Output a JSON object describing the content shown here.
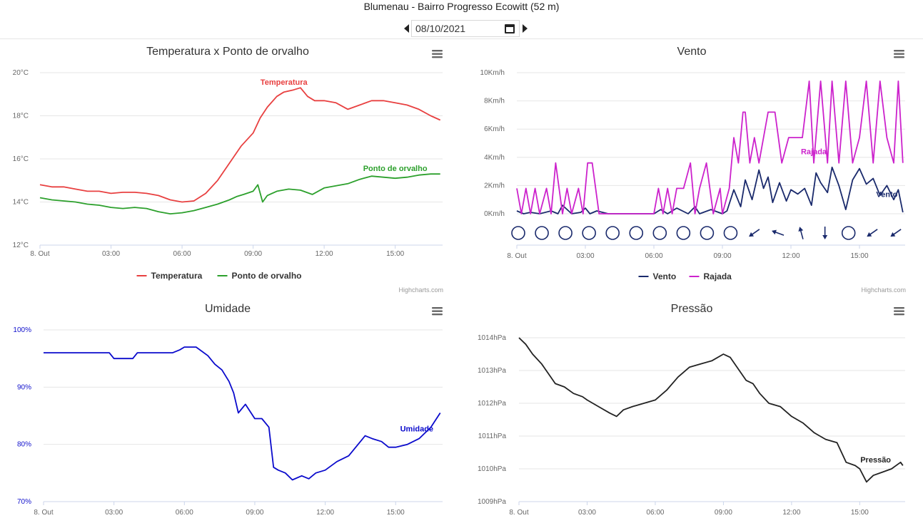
{
  "page": {
    "title": "Blumenau - Bairro Progresso Ecowitt (52 m)"
  },
  "date_nav": {
    "date": "08/10/2021"
  },
  "chart_data": [
    {
      "id": "temp",
      "type": "line",
      "title": "Temperatura x Ponto de orvalho",
      "x_ticks": [
        "8. Out",
        "03:00",
        "06:00",
        "09:00",
        "12:00",
        "15:00"
      ],
      "x_range": [
        0,
        17
      ],
      "y_ticks": [
        "12°C",
        "14°C",
        "16°C",
        "18°C",
        "20°C"
      ],
      "ylim": [
        12,
        20
      ],
      "tick_color": "#666666",
      "series": [
        {
          "name": "Temperatura",
          "label": "Temperatura",
          "color": "#e84040",
          "x": [
            0,
            0.25,
            0.5,
            1,
            1.5,
            2,
            2.5,
            3,
            3.5,
            4,
            4.5,
            5,
            5.5,
            6,
            6.5,
            7,
            7.5,
            8,
            8.5,
            9,
            9.3,
            9.6,
            10,
            10.3,
            10.7,
            11,
            11.3,
            11.6,
            12,
            12.5,
            13,
            13.5,
            14,
            14.5,
            15,
            15.5,
            16,
            16.5,
            16.9
          ],
          "y": [
            14.8,
            14.75,
            14.7,
            14.7,
            14.6,
            14.5,
            14.5,
            14.4,
            14.45,
            14.45,
            14.4,
            14.3,
            14.1,
            14.0,
            14.05,
            14.4,
            15.0,
            15.8,
            16.6,
            17.2,
            17.9,
            18.4,
            18.9,
            19.1,
            19.2,
            19.3,
            18.9,
            18.7,
            18.7,
            18.6,
            18.3,
            18.5,
            18.7,
            18.7,
            18.6,
            18.5,
            18.3,
            18.0,
            17.8
          ]
        },
        {
          "name": "Ponto de orvalho",
          "label": "Ponto de orvalho",
          "color": "#2ca02c",
          "x": [
            0,
            0.5,
            1,
            1.5,
            2,
            2.5,
            3,
            3.5,
            4,
            4.5,
            5,
            5.5,
            6,
            6.5,
            7,
            7.5,
            8,
            8.3,
            8.6,
            9,
            9.2,
            9.4,
            9.6,
            10,
            10.5,
            11,
            11.5,
            12,
            12.5,
            13,
            13.5,
            14,
            14.5,
            15,
            15.5,
            16,
            16.5,
            16.9
          ],
          "y": [
            14.2,
            14.1,
            14.05,
            14.0,
            13.9,
            13.85,
            13.75,
            13.7,
            13.75,
            13.7,
            13.55,
            13.45,
            13.5,
            13.6,
            13.75,
            13.9,
            14.1,
            14.25,
            14.35,
            14.5,
            14.8,
            14.0,
            14.3,
            14.5,
            14.6,
            14.55,
            14.35,
            14.65,
            14.75,
            14.85,
            15.05,
            15.2,
            15.15,
            15.1,
            15.15,
            15.25,
            15.3,
            15.3
          ]
        }
      ],
      "legend": [
        "Temperatura",
        "Ponto de orvalho"
      ],
      "credit": "Highcharts.com"
    },
    {
      "id": "wind",
      "type": "line",
      "title": "Vento",
      "x_ticks": [
        "8. Out",
        "03:00",
        "06:00",
        "09:00",
        "12:00",
        "15:00"
      ],
      "x_range": [
        0,
        17
      ],
      "y_ticks": [
        "0Km/h",
        "2Km/h",
        "4Km/h",
        "6Km/h",
        "8Km/h",
        "10Km/h"
      ],
      "ylim": [
        0,
        10
      ],
      "tick_color": "#666666",
      "series": [
        {
          "name": "Vento",
          "label": "Vento",
          "color": "#1a2a6c",
          "x": [
            0,
            0.3,
            0.6,
            1,
            1.5,
            1.8,
            2,
            2.4,
            2.8,
            3,
            3.2,
            3.5,
            4,
            5,
            6,
            6.3,
            6.6,
            7,
            7.5,
            7.8,
            8,
            8.5,
            9,
            9.2,
            9.5,
            9.8,
            10,
            10.3,
            10.6,
            10.8,
            11,
            11.2,
            11.5,
            11.8,
            12,
            12.3,
            12.6,
            12.9,
            13.1,
            13.3,
            13.6,
            13.8,
            14.1,
            14.4,
            14.7,
            15,
            15.3,
            15.6,
            15.9,
            16.2,
            16.5,
            16.7,
            16.9
          ],
          "y": [
            0.2,
            0,
            0.1,
            0,
            0.2,
            0,
            0.6,
            0,
            0.1,
            0.4,
            0,
            0.2,
            0,
            0,
            0,
            0.3,
            0,
            0.4,
            0,
            0.5,
            0,
            0.3,
            0,
            0.2,
            1.7,
            0.5,
            2.4,
            1.0,
            3.1,
            1.8,
            2.6,
            0.8,
            2.2,
            0.9,
            1.7,
            1.4,
            1.8,
            0.6,
            2.9,
            2.2,
            1.5,
            3.3,
            2.0,
            0.3,
            2.4,
            3.2,
            2.1,
            2.5,
            1.3,
            2.0,
            1.0,
            1.7,
            0.1
          ]
        },
        {
          "name": "Rajada",
          "label": "Rajada",
          "color": "#cc22cc",
          "x": [
            0,
            0.2,
            0.4,
            0.6,
            0.8,
            1,
            1.3,
            1.5,
            1.7,
            2,
            2.2,
            2.4,
            2.7,
            2.9,
            3.1,
            3.3,
            3.6,
            4,
            6,
            6.2,
            6.4,
            6.6,
            6.8,
            7,
            7.3,
            7.6,
            7.8,
            8,
            8.3,
            8.6,
            8.9,
            9,
            9.3,
            9.5,
            9.7,
            9.9,
            10,
            10.2,
            10.4,
            10.6,
            10.8,
            11,
            11.3,
            11.6,
            11.9,
            12.2,
            12.5,
            12.8,
            13,
            13.3,
            13.6,
            13.8,
            14.1,
            14.4,
            14.7,
            15,
            15.3,
            15.6,
            15.9,
            16.2,
            16.5,
            16.7,
            16.9
          ],
          "y": [
            1.8,
            0,
            1.8,
            0,
            1.8,
            0,
            1.8,
            0,
            3.6,
            0,
            1.8,
            0,
            1.8,
            0,
            3.6,
            3.6,
            0,
            0,
            0,
            1.8,
            0,
            1.8,
            0,
            1.8,
            1.8,
            3.6,
            0,
            1.8,
            3.6,
            0,
            1.8,
            0,
            1.8,
            5.4,
            3.6,
            7.2,
            7.2,
            3.6,
            5.4,
            3.6,
            5.4,
            7.2,
            7.2,
            3.6,
            5.4,
            5.4,
            5.4,
            9.4,
            3.6,
            9.4,
            3.6,
            9.4,
            3.6,
            9.4,
            3.6,
            5.4,
            9.4,
            3.6,
            9.4,
            5.4,
            3.6,
            9.4,
            3.6
          ]
        }
      ],
      "direction_markers": [
        "calm",
        "calm",
        "calm",
        "calm",
        "calm",
        "calm",
        "calm",
        "calm",
        "calm",
        "calm",
        "sw",
        "nw",
        "nnw",
        "s",
        "calm",
        "sw",
        "sw"
      ],
      "legend": [
        "Vento",
        "Rajada"
      ],
      "credit": "Highcharts.com"
    },
    {
      "id": "hum",
      "type": "line",
      "title": "Umidade",
      "x_ticks": [
        "8. Out",
        "03:00",
        "06:00",
        "09:00",
        "12:00",
        "15:00"
      ],
      "x_range": [
        0,
        17
      ],
      "y_ticks": [
        "70%",
        "80%",
        "90%",
        "100%"
      ],
      "ylim": [
        70,
        100
      ],
      "tick_color": "#1010cc",
      "series": [
        {
          "name": "Umidade",
          "label": "Umidade",
          "color": "#0a0acc",
          "x": [
            0,
            1,
            2,
            2.8,
            3,
            3.5,
            3.8,
            4,
            5,
            5.5,
            5.8,
            6,
            6.5,
            7,
            7.3,
            7.6,
            7.9,
            8.1,
            8.3,
            8.6,
            9,
            9.3,
            9.6,
            9.8,
            10,
            10.3,
            10.6,
            11,
            11.3,
            11.6,
            12,
            12.5,
            13,
            13.4,
            13.7,
            14,
            14.4,
            14.7,
            15,
            15.5,
            16,
            16.5,
            16.9
          ],
          "y": [
            96,
            96,
            96,
            96,
            95,
            95,
            95,
            96,
            96,
            96,
            96.5,
            97,
            97,
            95.5,
            94,
            93,
            91,
            89,
            85.5,
            87,
            84.5,
            84.5,
            83,
            76,
            75.5,
            75,
            73.8,
            74.5,
            74,
            75,
            75.5,
            77,
            78,
            80,
            81.5,
            81,
            80.5,
            79.5,
            79.5,
            80,
            81,
            83,
            85.5
          ]
        }
      ]
    },
    {
      "id": "press",
      "type": "line",
      "title": "Pressão",
      "x_ticks": [
        "8. Out",
        "03:00",
        "06:00",
        "09:00",
        "12:00",
        "15:00"
      ],
      "x_range": [
        0,
        17
      ],
      "y_ticks": [
        "1009hPa",
        "1010hPa",
        "1011hPa",
        "1012hPa",
        "1013hPa",
        "1014hPa"
      ],
      "ylim": [
        1009,
        1014
      ],
      "tick_color": "#666666",
      "series": [
        {
          "name": "Pressão",
          "label": "Pressão",
          "color": "#222222",
          "x": [
            0,
            0.3,
            0.6,
            1,
            1.3,
            1.6,
            2,
            2.4,
            2.8,
            3,
            3.5,
            4,
            4.3,
            4.6,
            5,
            5.5,
            6,
            6.5,
            7,
            7.5,
            8,
            8.5,
            9,
            9.3,
            9.6,
            10,
            10.3,
            10.6,
            11,
            11.5,
            12,
            12.5,
            13,
            13.5,
            14,
            14.4,
            14.8,
            15,
            15.3,
            15.6,
            16,
            16.4,
            16.8,
            16.9
          ],
          "y": [
            1014,
            1013.8,
            1013.5,
            1013.2,
            1012.9,
            1012.6,
            1012.5,
            1012.3,
            1012.2,
            1012.1,
            1011.9,
            1011.7,
            1011.6,
            1011.8,
            1011.9,
            1012.0,
            1012.1,
            1012.4,
            1012.8,
            1013.1,
            1013.2,
            1013.3,
            1013.5,
            1013.4,
            1013.1,
            1012.7,
            1012.6,
            1012.3,
            1012.0,
            1011.9,
            1011.6,
            1011.4,
            1011.1,
            1010.9,
            1010.8,
            1010.2,
            1010.1,
            1010.0,
            1009.6,
            1009.8,
            1009.9,
            1010.0,
            1010.2,
            1010.1
          ]
        }
      ]
    }
  ]
}
